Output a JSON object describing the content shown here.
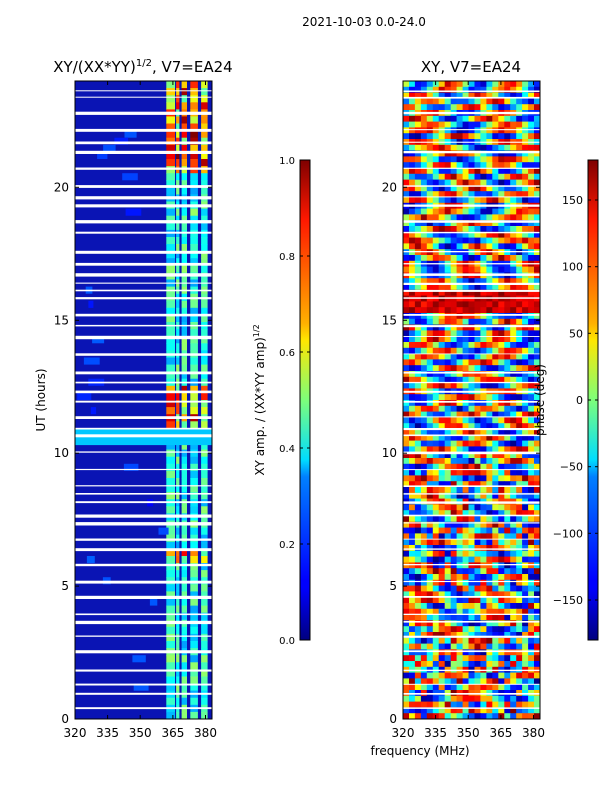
{
  "figure_title": "2021-10-03 0.0-24.0",
  "xlabel_shared": "frequency (MHz)",
  "chart_data": [
    {
      "type": "heatmap",
      "title": "XY/(XX*YY)",
      "title_sup": "1/2",
      "title_suffix": ", V7=EA24",
      "xlabel": "",
      "ylabel": "UT (hours)",
      "xlim": [
        320,
        383
      ],
      "ylim": [
        0,
        24
      ],
      "xticks": [
        "320",
        "335",
        "350",
        "365",
        "380"
      ],
      "yticks": [
        "0",
        "5",
        "10",
        "15",
        "20"
      ],
      "colorbar": {
        "label": "XY amp. / (XX*YY amp)",
        "label_sup": "1/2",
        "range": [
          0.0,
          1.0
        ],
        "ticks": [
          "0.0",
          "0.2",
          "0.4",
          "0.6",
          "0.8",
          "1.0"
        ],
        "colormap": "jet"
      }
    },
    {
      "type": "heatmap",
      "title": "XY, V7=EA24",
      "xlabel": "frequency (MHz)",
      "ylabel": "",
      "xlim": [
        320,
        383
      ],
      "ylim": [
        0,
        24
      ],
      "xticks": [
        "320",
        "335",
        "350",
        "365",
        "380"
      ],
      "yticks": [
        "0",
        "5",
        "10",
        "15",
        "20"
      ],
      "colorbar": {
        "label": "phase (deg)",
        "range": [
          -180,
          180
        ],
        "ticks": [
          "−150",
          "−100",
          "−50",
          "0",
          "50",
          "100",
          "150"
        ],
        "colormap": "jet"
      }
    }
  ]
}
